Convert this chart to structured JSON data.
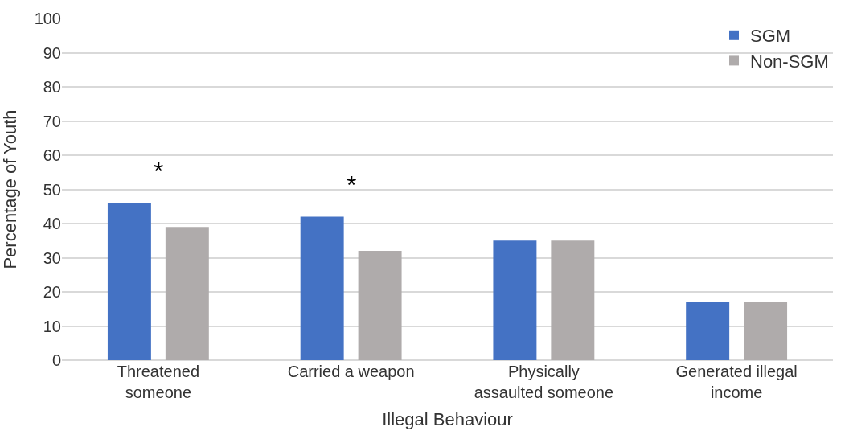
{
  "chart_data": {
    "type": "bar",
    "xlabel": "Illegal Behaviour",
    "ylabel": "Percentage of Youth",
    "categories": [
      "Threatened someone",
      "Carried a weapon",
      "Physically assaulted someone",
      "Generated illegal income"
    ],
    "series": [
      {
        "name": "SGM",
        "color": "#4472c4",
        "values": [
          46,
          42,
          35,
          17
        ]
      },
      {
        "name": "Non-SGM",
        "color": "#afabab",
        "values": [
          39,
          32,
          35,
          17
        ]
      }
    ],
    "ylim": [
      0,
      100
    ],
    "yticks": [
      0,
      10,
      20,
      30,
      40,
      50,
      60,
      70,
      80,
      90,
      100
    ],
    "grid": "y",
    "legend": "top right",
    "annotations": [
      "*",
      "*"
    ]
  }
}
